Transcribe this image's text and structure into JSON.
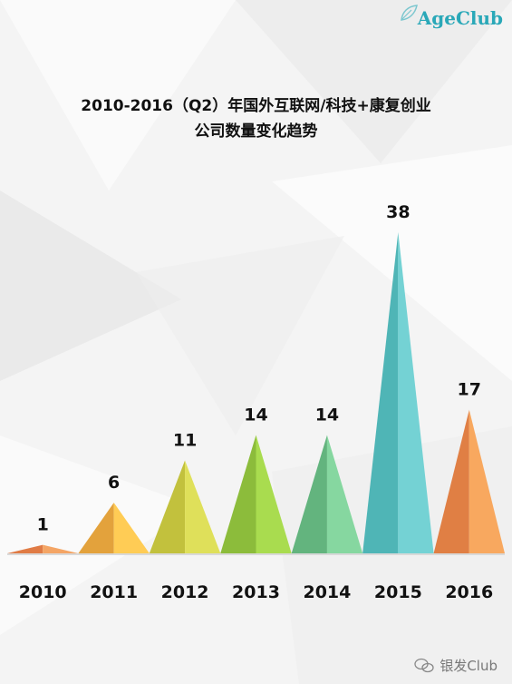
{
  "header": {
    "logo_text": "AgeClub",
    "title_line1": "2010-2016（Q2）年国外互联网/科技+康复创业",
    "title_line2": "公司数量变化趋势"
  },
  "watermark": {
    "text": "银发Club"
  },
  "chart_data": {
    "type": "bar",
    "title": "2010-2016（Q2）年国外互联网/科技+康复创业公司数量变化趋势",
    "xlabel": "",
    "ylabel": "",
    "grid": false,
    "legend": "none",
    "categories": [
      "2010",
      "2011",
      "2012",
      "2013",
      "2014",
      "2015",
      "2016"
    ],
    "values": [
      1,
      6,
      11,
      14,
      14,
      38,
      17
    ],
    "value_labels": [
      "1",
      "6",
      "11",
      "14",
      "14",
      "38",
      "17"
    ],
    "ylim": [
      0,
      38
    ],
    "colors": [
      {
        "left": "#e07b45",
        "right": "#f4a565"
      },
      {
        "left": "#e3a23c",
        "right": "#ffcc55"
      },
      {
        "left": "#c2c13d",
        "right": "#dfe05a"
      },
      {
        "left": "#8cbc3b",
        "right": "#a9dc4f"
      },
      {
        "left": "#63b47e",
        "right": "#86d7a0"
      },
      {
        "left": "#4fb5b6",
        "right": "#74d2d4"
      },
      {
        "left": "#e07f44",
        "right": "#f8a85f"
      }
    ]
  }
}
